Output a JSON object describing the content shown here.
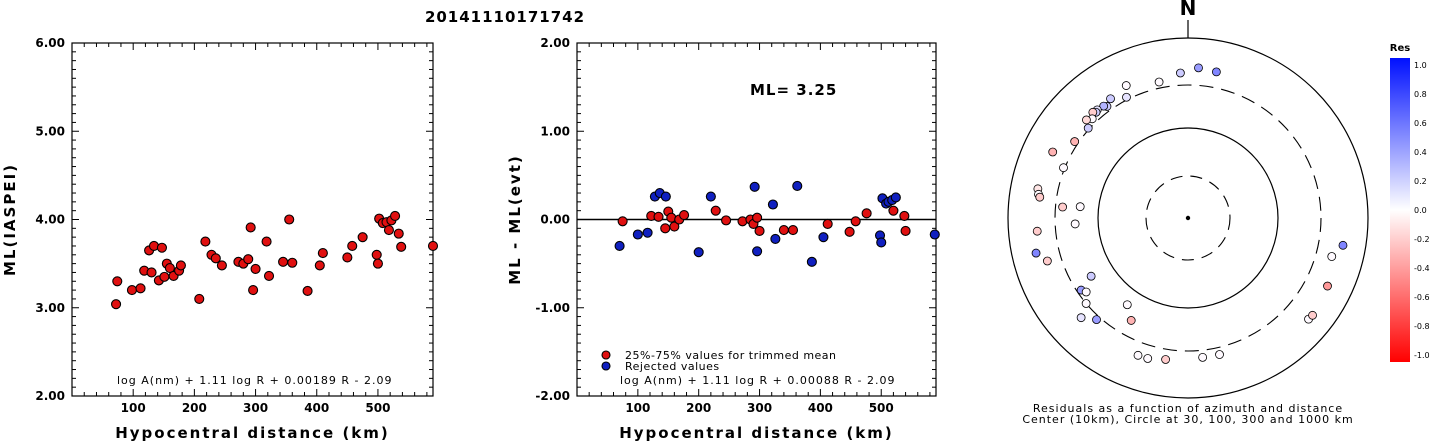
{
  "page_title": "20141110171742",
  "chart_data": [
    {
      "type": "scatter",
      "xlabel": "Hypocentral distance (km)",
      "ylabel": "ML(IASPEI)",
      "xlim": [
        0,
        590
      ],
      "ylim": [
        2.0,
        6.0
      ],
      "xticks": [
        "100",
        "200",
        "300",
        "400",
        "500"
      ],
      "yticks": [
        "2.00",
        "3.00",
        "4.00",
        "5.00",
        "6.00"
      ],
      "equation": "log A(nm) + 1.11 log R + 0.00189 R - 2.09",
      "series": [
        {
          "color": "#e01010",
          "points": [
            [
              72,
              3.04
            ],
            [
              74,
              3.3
            ],
            [
              98,
              3.2
            ],
            [
              112,
              3.22
            ],
            [
              118,
              3.42
            ],
            [
              126,
              3.65
            ],
            [
              130,
              3.4
            ],
            [
              134,
              3.7
            ],
            [
              142,
              3.31
            ],
            [
              147,
              3.68
            ],
            [
              151,
              3.35
            ],
            [
              155,
              3.5
            ],
            [
              160,
              3.45
            ],
            [
              166,
              3.36
            ],
            [
              175,
              3.42
            ],
            [
              178,
              3.48
            ],
            [
              208,
              3.1
            ],
            [
              218,
              3.75
            ],
            [
              228,
              3.6
            ],
            [
              235,
              3.56
            ],
            [
              245,
              3.48
            ],
            [
              272,
              3.52
            ],
            [
              280,
              3.5
            ],
            [
              288,
              3.55
            ],
            [
              292,
              3.91
            ],
            [
              296,
              3.2
            ],
            [
              300,
              3.44
            ],
            [
              318,
              3.75
            ],
            [
              322,
              3.36
            ],
            [
              345,
              3.52
            ],
            [
              355,
              4.0
            ],
            [
              360,
              3.51
            ],
            [
              385,
              3.19
            ],
            [
              405,
              3.48
            ],
            [
              410,
              3.62
            ],
            [
              450,
              3.57
            ],
            [
              458,
              3.7
            ],
            [
              475,
              3.8
            ],
            [
              498,
              3.6
            ],
            [
              500,
              3.5
            ],
            [
              502,
              4.01
            ],
            [
              508,
              3.96
            ],
            [
              514,
              3.97
            ],
            [
              518,
              3.88
            ],
            [
              522,
              3.99
            ],
            [
              528,
              4.04
            ],
            [
              534,
              3.84
            ],
            [
              538,
              3.69
            ],
            [
              590,
              3.7
            ]
          ]
        }
      ]
    },
    {
      "type": "scatter",
      "xlabel": "Hypocentral distance (km)",
      "ylabel": "ML - ML(evt)",
      "xlim": [
        0,
        590
      ],
      "ylim": [
        -2.0,
        2.0
      ],
      "xticks": [
        "100",
        "200",
        "300",
        "400",
        "500"
      ],
      "yticks": [
        "-2.00",
        "-1.00",
        "0.00",
        "1.00",
        "2.00"
      ],
      "annotation": "ML= 3.25",
      "equation": "log A(nm) + 1.11 log R + 0.00088 R - 2.09",
      "legend": [
        {
          "label": "25%-75% values for trimmed mean",
          "color": "#e01010"
        },
        {
          "label": "Rejected values",
          "color": "#1020c0"
        }
      ],
      "series": [
        {
          "name": "25%-75% values for trimmed mean",
          "color": "#e01010",
          "points": [
            [
              75,
              -0.02
            ],
            [
              122,
              0.04
            ],
            [
              134,
              0.03
            ],
            [
              145,
              -0.1
            ],
            [
              150,
              0.09
            ],
            [
              155,
              0.02
            ],
            [
              160,
              -0.08
            ],
            [
              168,
              0.0
            ],
            [
              176,
              0.05
            ],
            [
              228,
              0.1
            ],
            [
              245,
              -0.01
            ],
            [
              272,
              -0.02
            ],
            [
              285,
              0.0
            ],
            [
              290,
              -0.05
            ],
            [
              296,
              0.02
            ],
            [
              300,
              -0.13
            ],
            [
              340,
              -0.12
            ],
            [
              355,
              -0.12
            ],
            [
              412,
              -0.05
            ],
            [
              448,
              -0.14
            ],
            [
              458,
              -0.02
            ],
            [
              476,
              0.07
            ],
            [
              520,
              0.1
            ],
            [
              538,
              0.04
            ],
            [
              540,
              -0.13
            ]
          ]
        },
        {
          "name": "Rejected values",
          "color": "#1020c0",
          "points": [
            [
              70,
              -0.3
            ],
            [
              100,
              -0.17
            ],
            [
              116,
              -0.15
            ],
            [
              128,
              0.26
            ],
            [
              136,
              0.3
            ],
            [
              146,
              0.26
            ],
            [
              200,
              -0.37
            ],
            [
              220,
              0.26
            ],
            [
              292,
              0.37
            ],
            [
              296,
              -0.36
            ],
            [
              322,
              0.17
            ],
            [
              326,
              -0.22
            ],
            [
              362,
              0.38
            ],
            [
              386,
              -0.48
            ],
            [
              405,
              -0.2
            ],
            [
              498,
              -0.18
            ],
            [
              502,
              0.24
            ],
            [
              500,
              -0.26
            ],
            [
              508,
              0.18
            ],
            [
              512,
              0.2
            ],
            [
              518,
              0.22
            ],
            [
              524,
              0.25
            ],
            [
              588,
              -0.17
            ]
          ]
        }
      ]
    },
    {
      "type": "scatter",
      "subtype": "polar",
      "north_label": "N",
      "caption_line1": "Residuals as a function of azimuth and distance",
      "caption_line2": "Center (10km), Circle at 30, 100, 300 and 1000 km",
      "rings_km": [
        30,
        100,
        300,
        1000
      ],
      "center_km": 10,
      "points": [
        {
          "az": 357,
          "dist": 410,
          "res": 0.2
        },
        {
          "az": 4,
          "dist": 470,
          "res": 0.4
        },
        {
          "az": 11,
          "dist": 450,
          "res": 0.5
        },
        {
          "az": 348,
          "dist": 350,
          "res": 0.0
        },
        {
          "az": 335,
          "dist": 420,
          "res": 0.0
        },
        {
          "az": 327,
          "dist": 380,
          "res": 0.2
        },
        {
          "az": 324,
          "dist": 340,
          "res": 0.2
        },
        {
          "az": 323,
          "dist": 360,
          "res": 0.3
        },
        {
          "az": 320,
          "dist": 370,
          "res": 0.1
        },
        {
          "az": 319,
          "dist": 360,
          "res": 0.2
        },
        {
          "az": 318,
          "dist": 380,
          "res": -0.2
        },
        {
          "az": 316,
          "dist": 340,
          "res": 0.0
        },
        {
          "az": 314,
          "dist": 370,
          "res": -0.15
        },
        {
          "az": 333,
          "dist": 320,
          "res": 0.1
        },
        {
          "az": 312,
          "dist": 310,
          "res": 0.2
        },
        {
          "az": 304,
          "dist": 330,
          "res": -0.3
        },
        {
          "az": 296,
          "dist": 470,
          "res": -0.3
        },
        {
          "az": 292,
          "dist": 310,
          "res": 0.0
        },
        {
          "az": 281,
          "dist": 500,
          "res": -0.1
        },
        {
          "az": 279,
          "dist": 480,
          "res": 0.0
        },
        {
          "az": 278,
          "dist": 460,
          "res": -0.2
        },
        {
          "az": 275,
          "dist": 250,
          "res": -0.2
        },
        {
          "az": 276,
          "dist": 160,
          "res": 0.0
        },
        {
          "az": 267,
          "dist": 180,
          "res": 0.0
        },
        {
          "az": 265,
          "dist": 480,
          "res": -0.2
        },
        {
          "az": 257,
          "dist": 540,
          "res": 0.5
        },
        {
          "az": 253,
          "dist": 430,
          "res": -0.2
        },
        {
          "az": 239,
          "dist": 180,
          "res": 0.2
        },
        {
          "az": 236,
          "dist": 270,
          "res": 0.4
        },
        {
          "az": 234,
          "dist": 250,
          "res": 0.0
        },
        {
          "az": 230,
          "dist": 300,
          "res": 0.0
        },
        {
          "az": 227,
          "dist": 420,
          "res": 0.1
        },
        {
          "az": 222,
          "dist": 330,
          "res": 0.4
        },
        {
          "az": 215,
          "dist": 150,
          "res": 0.0
        },
        {
          "az": 209,
          "dist": 200,
          "res": -0.3
        },
        {
          "az": 200,
          "dist": 420,
          "res": 0.0
        },
        {
          "az": 196,
          "dist": 420,
          "res": 0.0
        },
        {
          "az": 189,
          "dist": 390,
          "res": -0.2
        },
        {
          "az": 174,
          "dist": 360,
          "res": 0.0
        },
        {
          "az": 167,
          "dist": 360,
          "res": 0.0
        },
        {
          "az": 130,
          "dist": 560,
          "res": 0.0
        },
        {
          "az": 128,
          "dist": 570,
          "res": -0.2
        },
        {
          "az": 116,
          "dist": 530,
          "res": -0.4
        },
        {
          "az": 105,
          "dist": 450,
          "res": 0.0
        },
        {
          "az": 100,
          "dist": 560,
          "res": 0.5
        }
      ]
    }
  ],
  "colorbar": {
    "title": "Res",
    "ticks": [
      "1.0",
      "0.8",
      "0.6",
      "0.4",
      "0.2",
      "0.0",
      "-0.2",
      "-0.4",
      "-0.6",
      "-0.8",
      "-1.0"
    ],
    "max_color": "#0010ff",
    "mid_color": "#ffffff",
    "min_color": "#ff0000"
  }
}
